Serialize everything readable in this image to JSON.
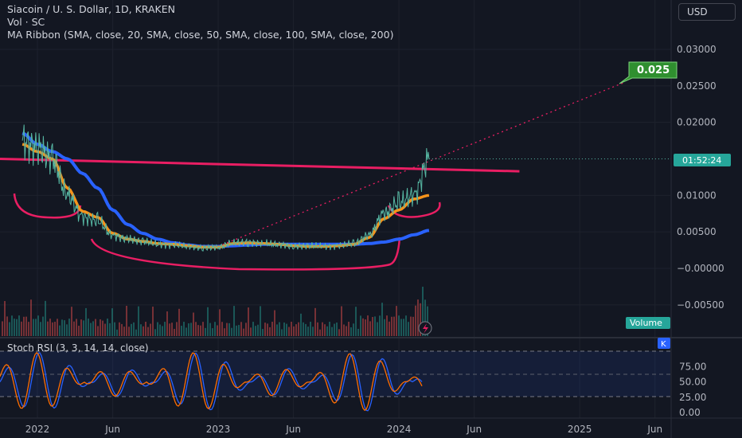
{
  "header": {
    "symbol_line": "Siacoin / U. S. Dollar, 1D, KRAKEN",
    "volume_line": "Vol · SC",
    "ma_line": "MA Ribbon (SMA, close, 20, SMA, close, 50, SMA, close, 100, SMA, close, 200)",
    "currency": "USD"
  },
  "price_axis": {
    "ticks": [
      "0.03000",
      "0.02500",
      "0.02000",
      "0.01000",
      "0.00500",
      "−0.00000",
      "−0.00500"
    ],
    "countdown": "01:52:24",
    "target_label": "0.025",
    "volume_label": "Volume"
  },
  "rsi_panel": {
    "title": "Stoch RSI (3, 3, 14, 14, close)",
    "k_label": "K",
    "ticks": [
      "75.00",
      "50.00",
      "25.00",
      "0.00"
    ]
  },
  "time_axis": {
    "labels": [
      "2022",
      "Jun",
      "2023",
      "Jun",
      "2024",
      "Jun",
      "2025",
      "Jun"
    ]
  },
  "colors": {
    "background": "#131722",
    "price_line": "#56b6a2",
    "ma_20": "#f7931a",
    "ma_200": "#2962ff",
    "resistance": "#e91e63",
    "rsi_k": "#2962ff",
    "rsi_d": "#ff6d00",
    "target": "#2f8f2f"
  },
  "chart_data": {
    "type": "line",
    "title": "Siacoin / U. S. Dollar, 1D, KRAKEN",
    "x": [
      "2021-12",
      "2022-01",
      "2022-02",
      "2022-03",
      "2022-04",
      "2022-05",
      "2022-06",
      "2022-07",
      "2022-08",
      "2022-09",
      "2022-10",
      "2022-11",
      "2022-12",
      "2023-01",
      "2023-02",
      "2023-03",
      "2023-04",
      "2023-05",
      "2023-06",
      "2023-07",
      "2023-08",
      "2023-09",
      "2023-10",
      "2023-11",
      "2023-12",
      "2024-01",
      "2024-02",
      "2024-03"
    ],
    "series": [
      {
        "name": "Price",
        "values": [
          0.0175,
          0.0165,
          0.015,
          0.01,
          0.007,
          0.0065,
          0.0045,
          0.004,
          0.0037,
          0.0033,
          0.0032,
          0.003,
          0.0028,
          0.0029,
          0.0035,
          0.0036,
          0.0034,
          0.0033,
          0.003,
          0.0031,
          0.003,
          0.0031,
          0.0034,
          0.0045,
          0.0075,
          0.009,
          0.01,
          0.015
        ]
      },
      {
        "name": "SMA 20",
        "values": [
          0.017,
          0.016,
          0.015,
          0.011,
          0.0078,
          0.007,
          0.0048,
          0.004,
          0.0037,
          0.0034,
          0.0033,
          0.0031,
          0.0029,
          0.0029,
          0.0034,
          0.0035,
          0.0034,
          0.0033,
          0.0031,
          0.003,
          0.003,
          0.0031,
          0.0033,
          0.0042,
          0.0068,
          0.008,
          0.0095,
          0.01
        ]
      },
      {
        "name": "SMA 200",
        "values": [
          0.0185,
          0.017,
          0.016,
          0.015,
          0.013,
          0.011,
          0.008,
          0.006,
          0.0048,
          0.004,
          0.0035,
          0.0032,
          0.003,
          0.003,
          0.0031,
          0.0032,
          0.0033,
          0.0033,
          0.0033,
          0.0033,
          0.0033,
          0.0033,
          0.0033,
          0.0034,
          0.0036,
          0.004,
          0.0046,
          0.0052
        ]
      }
    ],
    "annotations": {
      "resistance_line": {
        "from": [
          "2021-12",
          0.015
        ],
        "to": [
          "2024-09",
          0.0133
        ]
      },
      "projection": {
        "from": [
          "2023-01",
          0.003
        ],
        "to": [
          "2025-04",
          0.0255
        ],
        "label": "0.025"
      }
    },
    "ylim": [
      -0.0055,
      0.032
    ],
    "rsi": {
      "title": "Stoch RSI (3, 3, 14, 14, close)",
      "ylim": [
        0,
        100
      ],
      "levels": [
        80,
        20
      ]
    }
  }
}
